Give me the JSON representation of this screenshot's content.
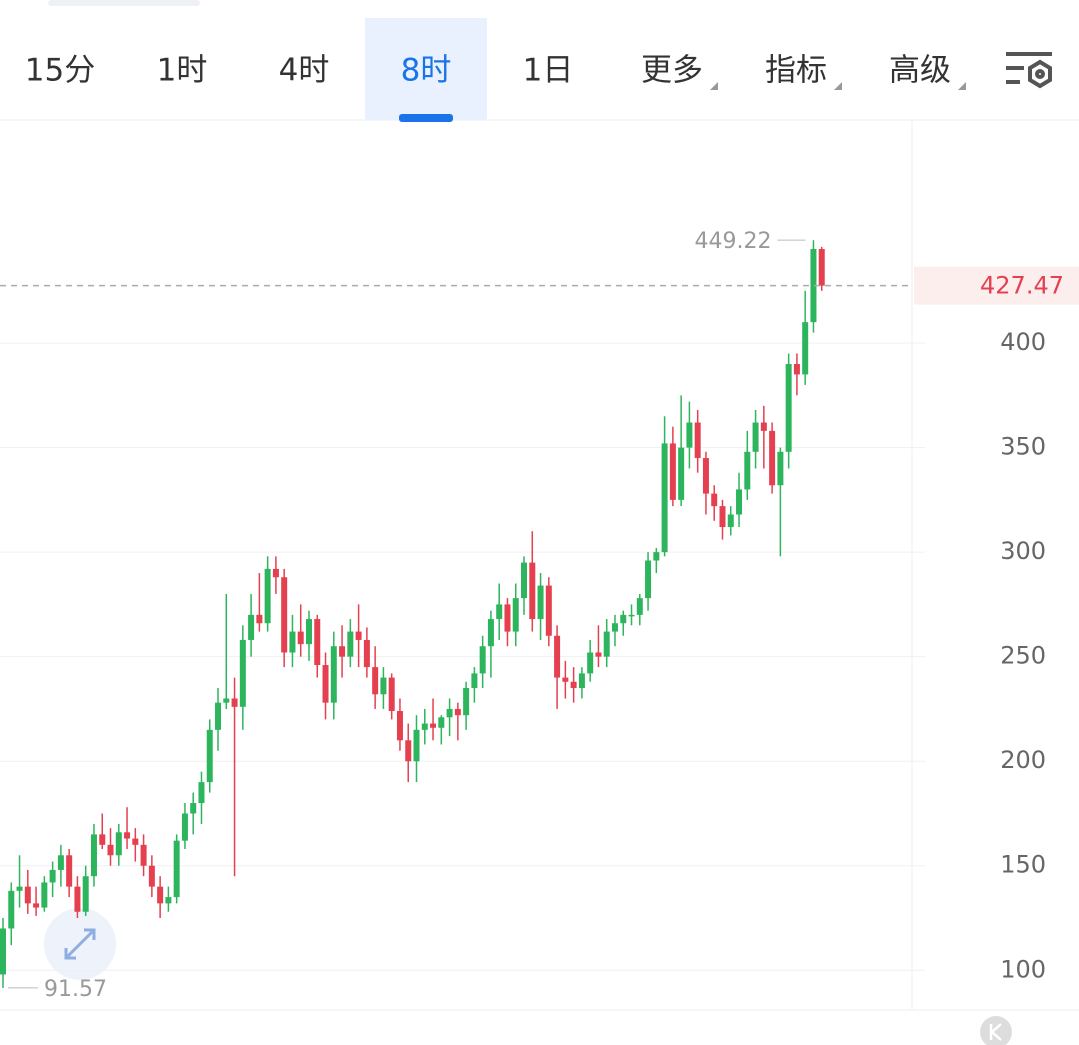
{
  "tabs": [
    {
      "label": "15分"
    },
    {
      "label": "1时"
    },
    {
      "label": "4时"
    },
    {
      "label": "8时",
      "selected": true
    },
    {
      "label": "1日"
    },
    {
      "label": "更多",
      "menu": true
    },
    {
      "label": "指标",
      "menu": true
    },
    {
      "label": "高级",
      "menu": true
    }
  ],
  "chart_data": {
    "type": "candlestick",
    "open": [
      98,
      120,
      138,
      140,
      132,
      130,
      142,
      148,
      155,
      140,
      128,
      145,
      165,
      160,
      155,
      166,
      163,
      160,
      150,
      140,
      132,
      135,
      162,
      175,
      180,
      190,
      215,
      228,
      230,
      226,
      258,
      270,
      266,
      292,
      288,
      252,
      262,
      256,
      268,
      246,
      228,
      255,
      250,
      262,
      258,
      245,
      232,
      240,
      224,
      210,
      200,
      215,
      218,
      216,
      221,
      225,
      222,
      235,
      242,
      255,
      268,
      275,
      262,
      278,
      295,
      268,
      284,
      260,
      240,
      238,
      235,
      242,
      252,
      250,
      262,
      266,
      270,
      270,
      278,
      296,
      300,
      352,
      325,
      350,
      362,
      345,
      328,
      322,
      312,
      318,
      330,
      348,
      362,
      358,
      332,
      348,
      390,
      385,
      410,
      445
    ],
    "high": [
      125,
      142,
      155,
      148,
      140,
      145,
      152,
      160,
      158,
      145,
      150,
      170,
      175,
      168,
      170,
      178,
      168,
      165,
      155,
      145,
      140,
      165,
      180,
      185,
      195,
      220,
      235,
      280,
      240,
      265,
      280,
      290,
      298,
      298,
      292,
      270,
      275,
      272,
      270,
      252,
      262,
      265,
      268,
      275,
      264,
      255,
      245,
      242,
      230,
      218,
      222,
      225,
      230,
      222,
      230,
      228,
      238,
      245,
      260,
      272,
      285,
      278,
      285,
      298,
      310,
      290,
      288,
      265,
      248,
      245,
      245,
      258,
      265,
      268,
      270,
      272,
      275,
      280,
      300,
      302,
      365,
      360,
      375,
      372,
      368,
      348,
      332,
      325,
      322,
      338,
      358,
      368,
      370,
      362,
      350,
      395,
      395,
      425,
      449.22,
      446
    ],
    "low": [
      91.57,
      112,
      130,
      127,
      126,
      128,
      135,
      140,
      135,
      125,
      126,
      140,
      158,
      150,
      150,
      158,
      152,
      145,
      135,
      125,
      128,
      132,
      158,
      165,
      170,
      185,
      205,
      225,
      145,
      215,
      250,
      262,
      262,
      280,
      245,
      245,
      250,
      248,
      240,
      220,
      220,
      240,
      245,
      245,
      240,
      225,
      225,
      220,
      205,
      190,
      190,
      208,
      210,
      208,
      212,
      210,
      215,
      228,
      235,
      240,
      258,
      255,
      255,
      270,
      262,
      258,
      255,
      225,
      230,
      228,
      230,
      238,
      245,
      245,
      255,
      260,
      265,
      265,
      272,
      290,
      298,
      322,
      322,
      340,
      338,
      318,
      315,
      306,
      308,
      312,
      325,
      340,
      340,
      328,
      298,
      340,
      375,
      380,
      405,
      425
    ],
    "close": [
      120,
      138,
      140,
      132,
      130,
      142,
      148,
      155,
      140,
      128,
      145,
      165,
      160,
      155,
      166,
      163,
      160,
      150,
      140,
      132,
      135,
      162,
      175,
      180,
      190,
      215,
      228,
      230,
      226,
      258,
      270,
      266,
      292,
      288,
      252,
      262,
      256,
      268,
      246,
      228,
      255,
      250,
      262,
      258,
      245,
      232,
      240,
      224,
      210,
      200,
      215,
      218,
      216,
      221,
      225,
      222,
      235,
      242,
      255,
      268,
      275,
      262,
      278,
      295,
      268,
      284,
      260,
      240,
      238,
      235,
      242,
      252,
      250,
      262,
      266,
      270,
      270,
      278,
      296,
      300,
      352,
      325,
      350,
      362,
      345,
      328,
      322,
      312,
      318,
      330,
      348,
      362,
      358,
      332,
      348,
      390,
      385,
      410,
      445,
      427.47
    ],
    "up_color": "#2db55d",
    "down_color": "#e5404f",
    "ylim": [
      81,
      506.7
    ],
    "yticks": [
      100,
      150,
      200,
      250,
      300,
      350,
      400
    ],
    "grid": true
  }
}
